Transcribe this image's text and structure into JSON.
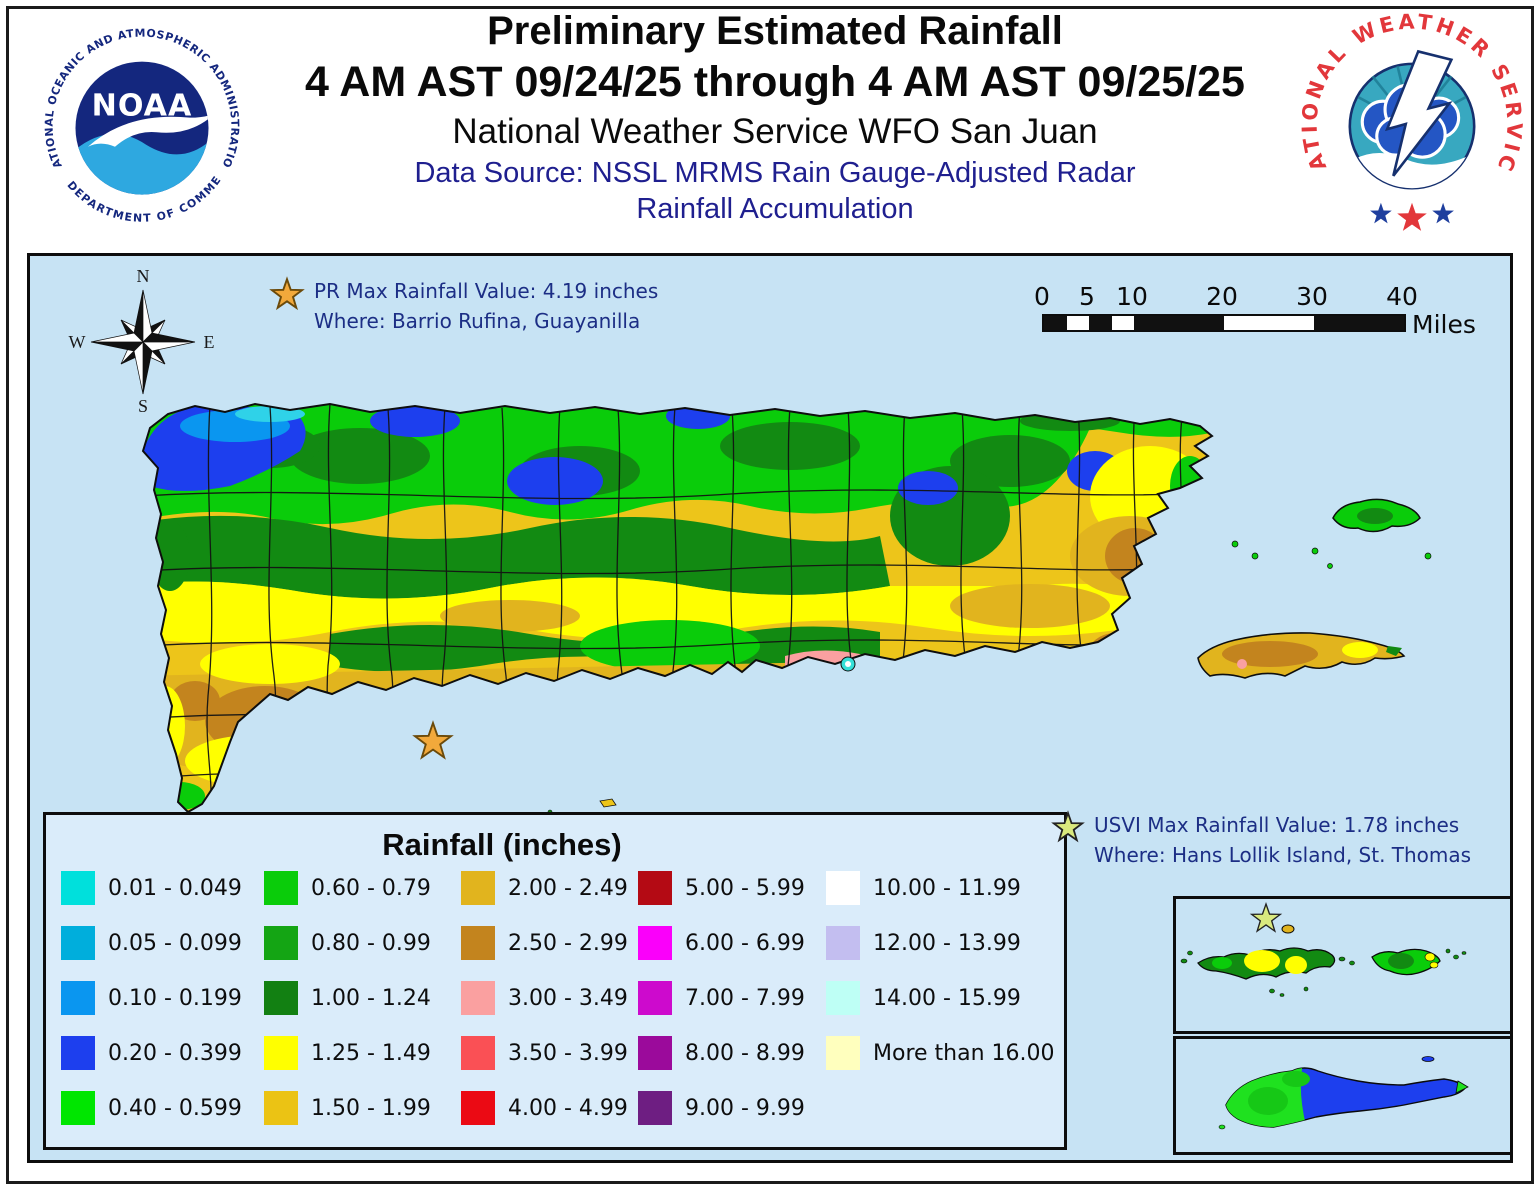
{
  "header": {
    "title_line1": "Preliminary Estimated Rainfall",
    "title_line2": "4 AM AST 09/24/25 through 4 AM AST 09/25/25",
    "subtitle": "National Weather Service WFO San Juan",
    "source_line1": "Data Source: NSSL MRMS Rain Gauge-Adjusted Radar",
    "source_line2": "Rainfall Accumulation",
    "noaa_logo": {
      "arc_top": "NATIONAL OCEANIC AND ATMOSPHERIC ADMINISTRATION",
      "arc_bottom": "U.S. DEPARTMENT OF COMMERCE",
      "acronym": "NOAA"
    },
    "nws_logo": {
      "arc_text": "NATIONAL WEATHER SERVICE"
    }
  },
  "map": {
    "compass": {
      "north": "N",
      "east": "E",
      "south": "S",
      "west": "W"
    },
    "pr_max": {
      "line1": "PR Max Rainfall Value: 4.19 inches",
      "line2": "Where: Barrio Rufina, Guayanilla"
    },
    "usvi_max": {
      "line1": "USVI Max Rainfall Value: 1.78 inches",
      "line2": "Where: Hans Lollik Island, St. Thomas"
    },
    "scalebar": {
      "ticks": [
        "0",
        "5",
        "10",
        "20",
        "30",
        "40"
      ],
      "tick_positions": [
        0,
        12.5,
        25,
        50,
        75,
        100
      ],
      "segments": [
        {
          "from": 0,
          "to": 6.25,
          "color": "#111111"
        },
        {
          "from": 6.25,
          "to": 12.5,
          "color": "#ffffff"
        },
        {
          "from": 12.5,
          "to": 18.75,
          "color": "#111111"
        },
        {
          "from": 18.75,
          "to": 25,
          "color": "#ffffff"
        },
        {
          "from": 25,
          "to": 50,
          "color": "#111111"
        },
        {
          "from": 50,
          "to": 75,
          "color": "#ffffff"
        },
        {
          "from": 75,
          "to": 100,
          "color": "#111111"
        }
      ],
      "unit": "Miles"
    },
    "ocean_color": "#C7E3F4",
    "pr_max_star_color": "#F2A93B",
    "usvi_star_color": "#D9E97E"
  },
  "legend": {
    "title": "Rainfall (inches)",
    "columns": [
      {
        "items": [
          {
            "range": "0.01 - 0.049",
            "color": "#00E0DC"
          },
          {
            "range": "0.05 - 0.099",
            "color": "#00AEDC"
          },
          {
            "range": "0.10 - 0.199",
            "color": "#0A96F0"
          },
          {
            "range": "0.20 - 0.399",
            "color": "#1D3FEE"
          },
          {
            "range": "0.40 - 0.599",
            "color": "#00E600"
          }
        ]
      },
      {
        "items": [
          {
            "range": "0.60 - 0.79",
            "color": "#0ACC0A"
          },
          {
            "range": "0.80 - 0.99",
            "color": "#14A514"
          },
          {
            "range": "1.00 - 1.24",
            "color": "#128012"
          },
          {
            "range": "1.25 - 1.49",
            "color": "#FFFF00"
          },
          {
            "range": "1.50 - 1.99",
            "color": "#EBC314"
          }
        ]
      },
      {
        "items": [
          {
            "range": "2.00 - 2.49",
            "color": "#E1B41E"
          },
          {
            "range": "2.50 - 2.99",
            "color": "#C3841E"
          },
          {
            "range": "3.00 - 3.49",
            "color": "#FAA0A0"
          },
          {
            "range": "3.50 - 3.99",
            "color": "#FA5055"
          },
          {
            "range": "4.00 - 4.99",
            "color": "#EB0A14"
          }
        ]
      },
      {
        "items": [
          {
            "range": "5.00 - 5.99",
            "color": "#B40A14"
          },
          {
            "range": "6.00 - 6.99",
            "color": "#FA00FA"
          },
          {
            "range": "7.00 - 7.99",
            "color": "#CD0ACD"
          },
          {
            "range": "8.00 - 8.99",
            "color": "#9B0A9B"
          },
          {
            "range": "9.00 - 9.99",
            "color": "#6E1E82"
          }
        ]
      },
      {
        "items": [
          {
            "range": "10.00 - 11.99",
            "color": "#FFFFFF"
          },
          {
            "range": "12.00 - 13.99",
            "color": "#C3BEF0"
          },
          {
            "range": "14.00 - 15.99",
            "color": "#BEFFF5"
          },
          {
            "range": "More than 16.00",
            "color": "#FFFFBE"
          }
        ]
      }
    ]
  }
}
